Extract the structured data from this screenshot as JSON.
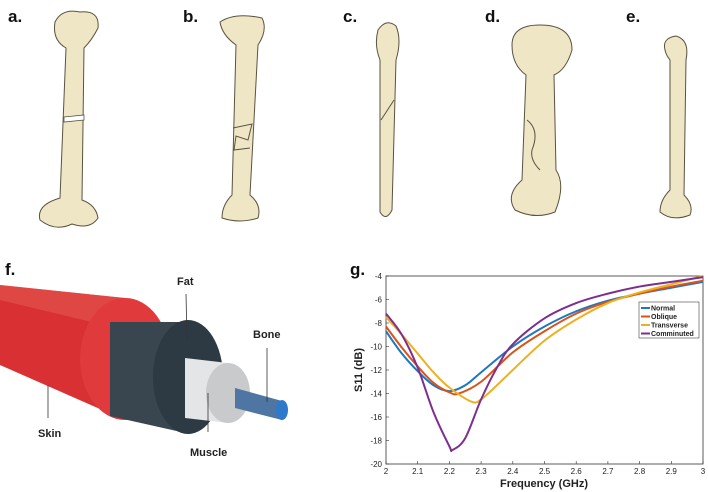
{
  "panels": {
    "a": {
      "label": "a."
    },
    "b": {
      "label": "b."
    },
    "c": {
      "label": "c."
    },
    "d": {
      "label": "d."
    },
    "e": {
      "label": "e."
    },
    "f": {
      "label": "f.",
      "layers": [
        "Fat",
        "Bone",
        "Skin",
        "Muscle"
      ],
      "colors": {
        "skin": "#d93033",
        "fat": "#2e3a43",
        "muscle": "#d9dadb",
        "bone": "#4a7bb7"
      }
    },
    "g": {
      "label": "g."
    }
  },
  "chart_data": {
    "type": "line",
    "xlabel": "Frequency (GHz)",
    "ylabel": "S11 (dB)",
    "xlim": [
      2,
      3
    ],
    "ylim": [
      -20,
      -4
    ],
    "xticks": [
      "2",
      "2.1",
      "2.2",
      "2.3",
      "2.4",
      "2.5",
      "2.6",
      "2.7",
      "2.8",
      "2.9",
      "3"
    ],
    "yticks": [
      "-4",
      "-6",
      "-8",
      "-10",
      "-12",
      "-14",
      "-16",
      "-18",
      "-20"
    ],
    "grid": false,
    "legend_position": "top-right",
    "series": [
      {
        "name": "Normal",
        "color": "#1f77c0",
        "x": [
          2,
          2.05,
          2.1,
          2.15,
          2.2,
          2.25,
          2.3,
          2.4,
          2.5,
          2.6,
          2.7,
          2.8,
          2.9,
          3
        ],
        "y": [
          -8.7,
          -10.6,
          -12.1,
          -13.3,
          -13.8,
          -13.3,
          -12.2,
          -10.0,
          -8.3,
          -7.0,
          -6.1,
          -5.5,
          -5.0,
          -4.5
        ]
      },
      {
        "name": "Oblique",
        "color": "#d9541a",
        "x": [
          2,
          2.05,
          2.1,
          2.15,
          2.2,
          2.23,
          2.3,
          2.4,
          2.5,
          2.6,
          2.7,
          2.8,
          2.9,
          3
        ],
        "y": [
          -8.3,
          -10.1,
          -11.7,
          -13.1,
          -13.9,
          -14.0,
          -13.0,
          -10.5,
          -8.7,
          -7.2,
          -6.2,
          -5.5,
          -4.9,
          -4.4
        ]
      },
      {
        "name": "Transverse",
        "color": "#edb120",
        "x": [
          2,
          2.05,
          2.1,
          2.15,
          2.2,
          2.27,
          2.3,
          2.35,
          2.4,
          2.5,
          2.6,
          2.7,
          2.8,
          2.9,
          3
        ],
        "y": [
          -7.5,
          -9.0,
          -10.6,
          -12.2,
          -13.5,
          -14.7,
          -14.5,
          -13.3,
          -12.0,
          -9.5,
          -7.7,
          -6.3,
          -5.4,
          -4.7,
          -4.0
        ]
      },
      {
        "name": "Comminuted",
        "color": "#7e2f8e",
        "x": [
          2,
          2.05,
          2.1,
          2.15,
          2.2,
          2.21,
          2.25,
          2.3,
          2.35,
          2.4,
          2.5,
          2.6,
          2.7,
          2.8,
          2.9,
          3
        ],
        "y": [
          -7.2,
          -9.0,
          -11.8,
          -15.6,
          -18.5,
          -18.8,
          -17.8,
          -14.5,
          -11.8,
          -9.8,
          -7.6,
          -6.3,
          -5.5,
          -4.9,
          -4.5,
          -4.1
        ]
      }
    ]
  }
}
